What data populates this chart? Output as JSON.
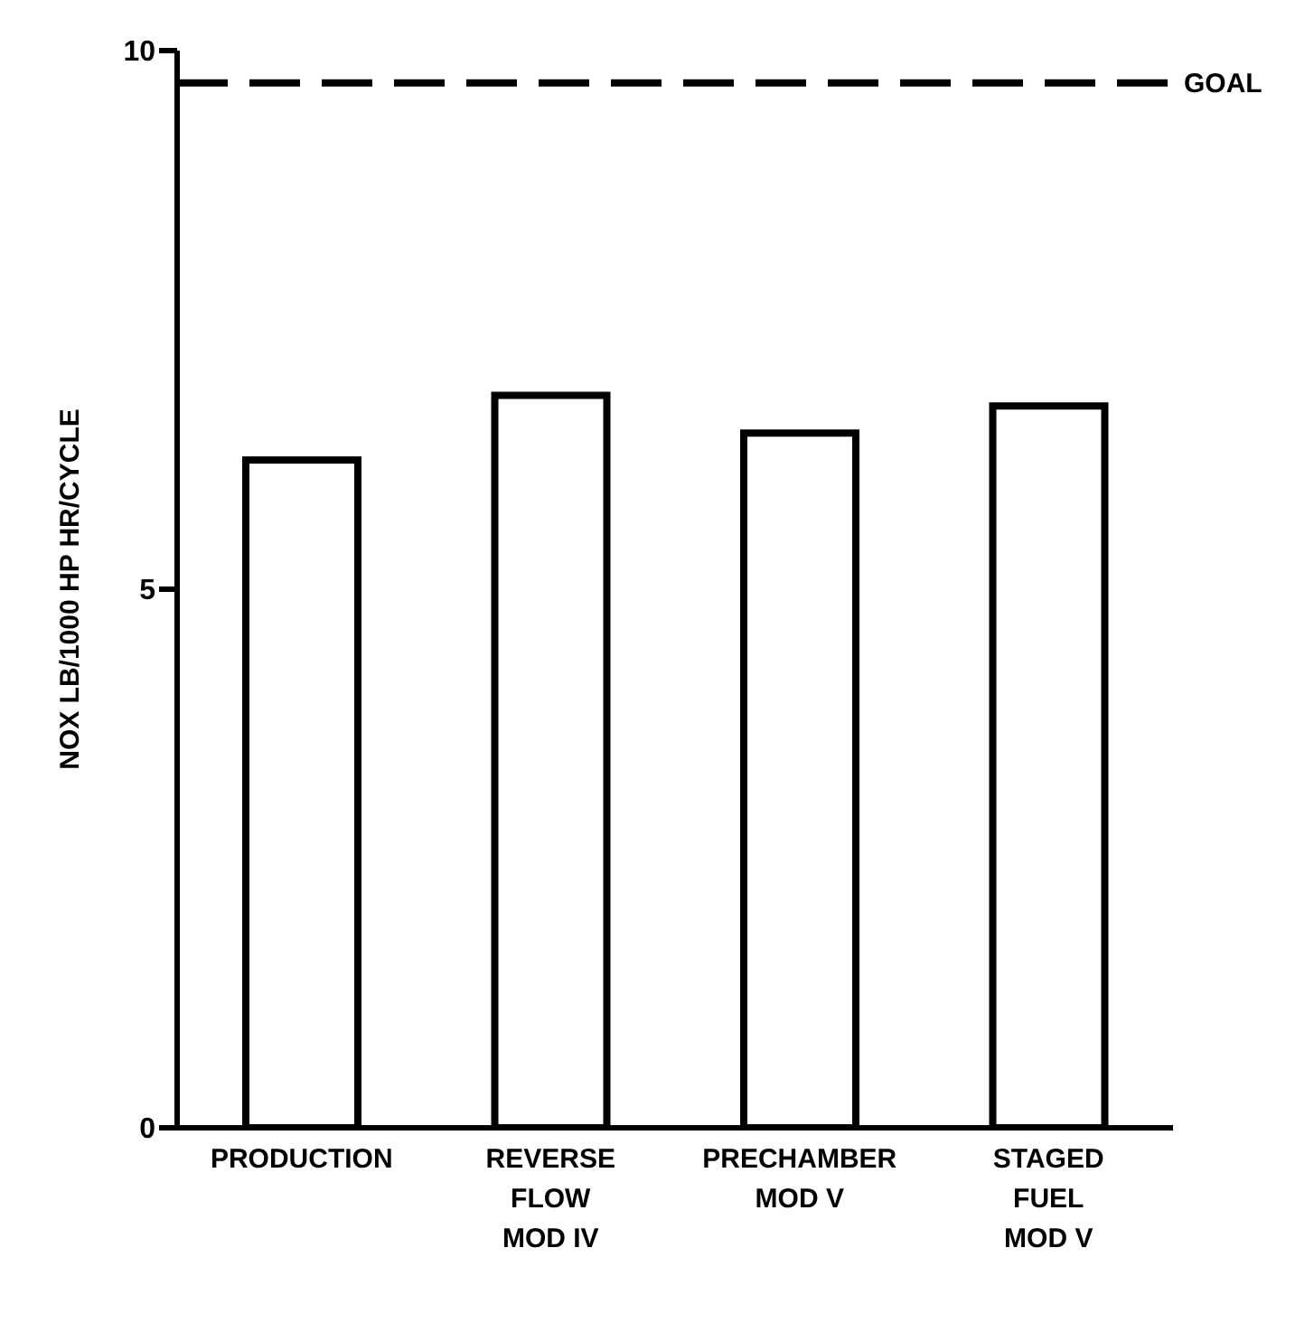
{
  "chart_data": {
    "type": "bar",
    "ylabel": "NOX LB/1000 HP HR/CYCLE",
    "categories": [
      "PRODUCTION",
      "REVERSE\nFLOW\nMOD IV",
      "PRECHAMBER\nMOD V",
      "STAGED\nFUEL\nMOD V"
    ],
    "values": [
      6.2,
      6.8,
      6.45,
      6.7
    ],
    "color": "#ffffff",
    "ylim": [
      0,
      10
    ],
    "yticks": [
      0,
      5,
      10
    ],
    "grid": false,
    "legend": false,
    "ref_lines": [
      {
        "axis": "y",
        "value": 9.7,
        "label": "GOAL",
        "line_style": "dashed",
        "color": "#000000"
      }
    ]
  }
}
